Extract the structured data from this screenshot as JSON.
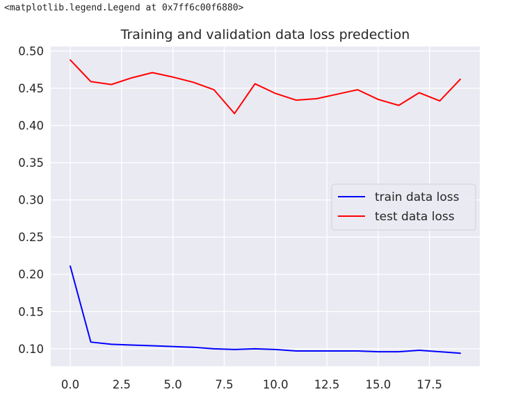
{
  "notebook_output": {
    "repr": "<matplotlib.legend.Legend at 0x7ff6c00f6880>"
  },
  "chart_data": {
    "type": "line",
    "title": "Training and validation data loss predection",
    "xlabel": "",
    "ylabel": "",
    "x": [
      0,
      1,
      2,
      3,
      4,
      5,
      6,
      7,
      8,
      9,
      10,
      11,
      12,
      13,
      14,
      15,
      16,
      17,
      18,
      19
    ],
    "series": [
      {
        "name": "train data loss",
        "color": "#0000ff",
        "values": [
          0.211,
          0.109,
          0.106,
          0.105,
          0.104,
          0.103,
          0.102,
          0.1,
          0.099,
          0.1,
          0.099,
          0.097,
          0.097,
          0.097,
          0.097,
          0.096,
          0.096,
          0.098,
          0.096,
          0.094
        ]
      },
      {
        "name": "test data loss",
        "color": "#ff0000",
        "values": [
          0.488,
          0.459,
          0.455,
          0.464,
          0.471,
          0.465,
          0.458,
          0.448,
          0.416,
          0.456,
          0.443,
          0.434,
          0.436,
          0.442,
          0.448,
          0.435,
          0.427,
          0.444,
          0.433,
          0.462
        ]
      }
    ],
    "xlim": [
      -0.95,
      19.95
    ],
    "ylim": [
      0.0765,
      0.506
    ],
    "xticks": [
      0.0,
      2.5,
      5.0,
      7.5,
      10.0,
      12.5,
      15.0,
      17.5
    ],
    "xtick_labels": [
      "0.0",
      "2.5",
      "5.0",
      "7.5",
      "10.0",
      "12.5",
      "15.0",
      "17.5"
    ],
    "yticks": [
      0.1,
      0.15,
      0.2,
      0.25,
      0.3,
      0.35,
      0.4,
      0.45,
      0.5
    ],
    "ytick_labels": [
      "0.10",
      "0.15",
      "0.20",
      "0.25",
      "0.30",
      "0.35",
      "0.40",
      "0.45",
      "0.50"
    ],
    "grid": true,
    "legend_position": "center-right",
    "style": {
      "plot_background": "#eaeaf2",
      "grid_color": "#ffffff"
    }
  }
}
